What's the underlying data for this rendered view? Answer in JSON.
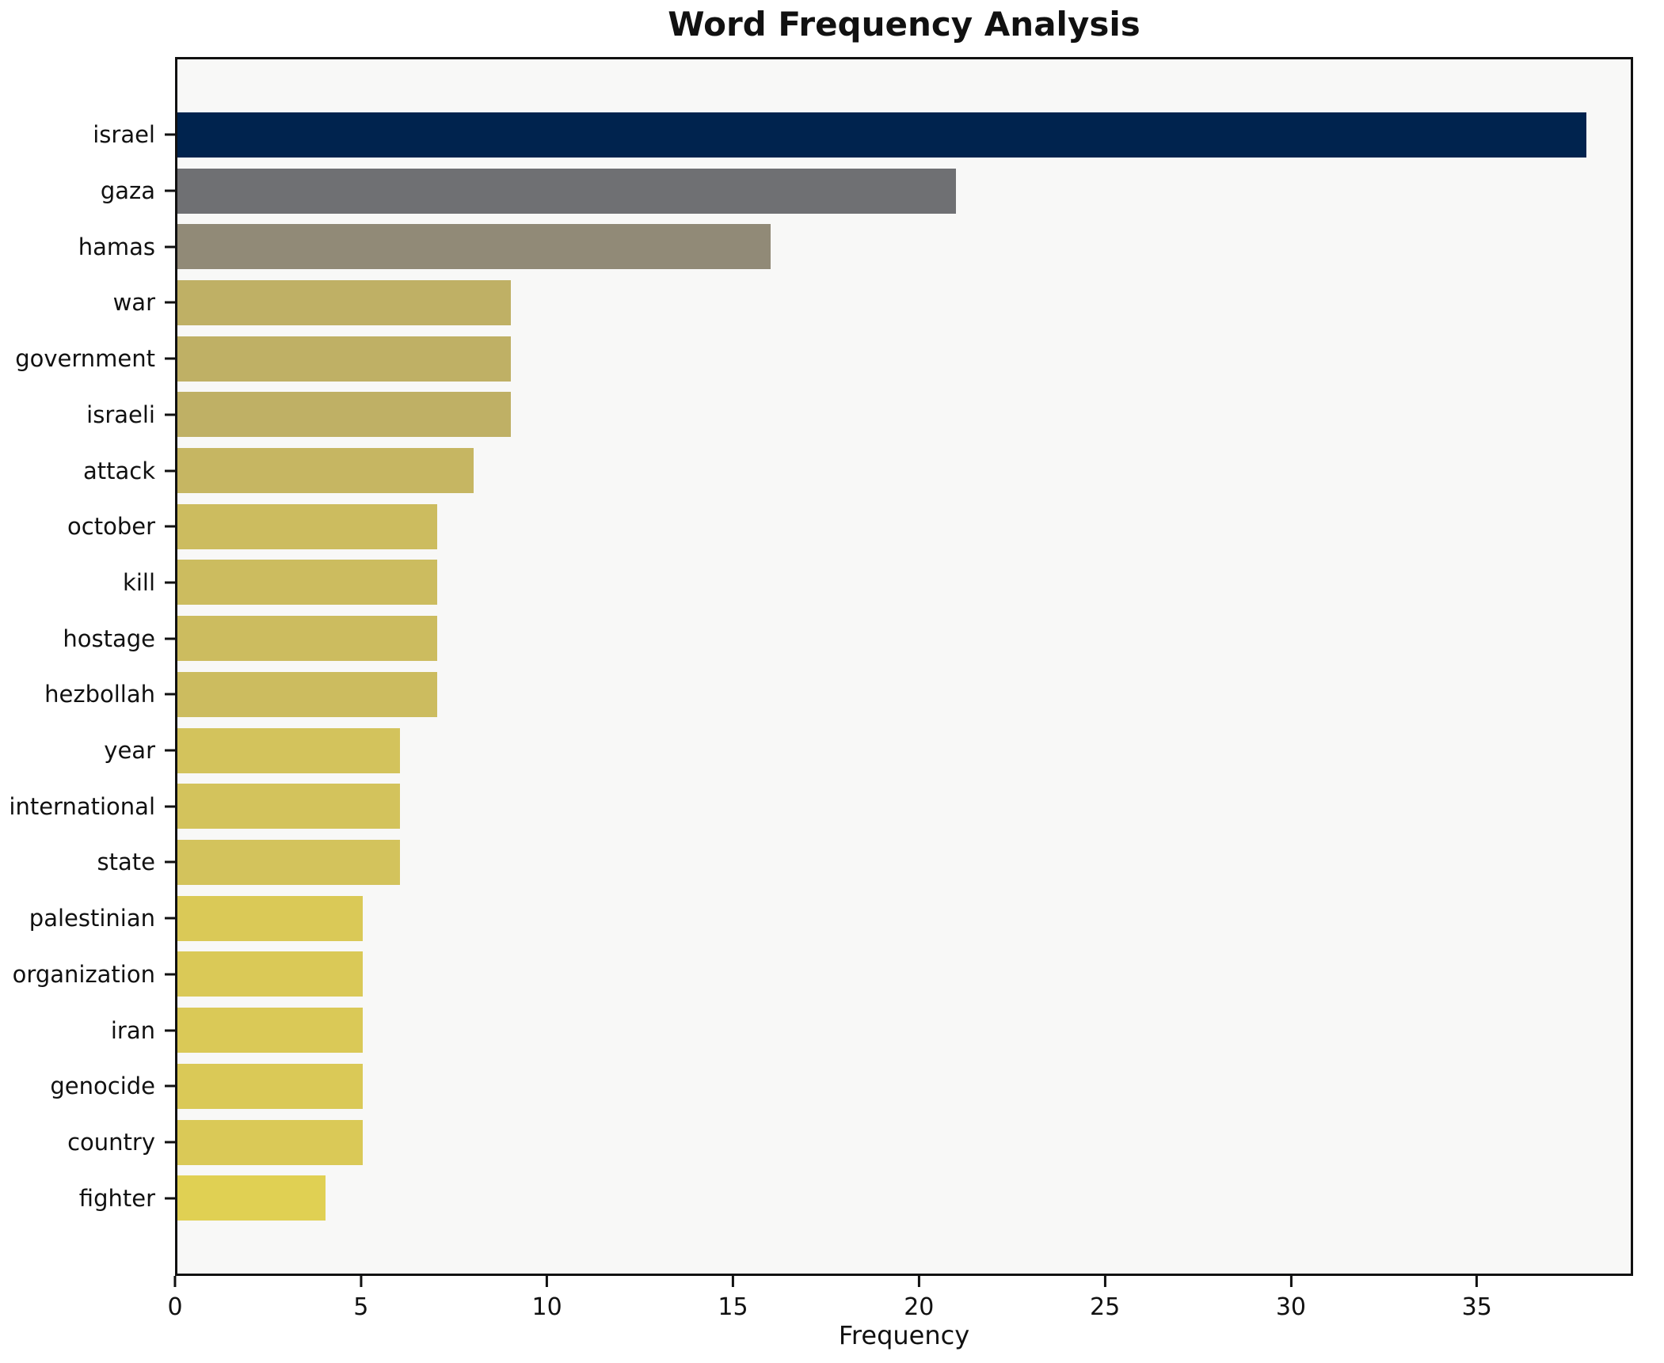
{
  "chart_data": {
    "type": "bar",
    "orientation": "horizontal",
    "title": "Word Frequency Analysis",
    "xlabel": "Frequency",
    "ylabel": "",
    "xlim": [
      0,
      39.2
    ],
    "x_ticks": [
      0,
      5,
      10,
      15,
      20,
      25,
      30,
      35
    ],
    "grid": false,
    "legend": false,
    "categories": [
      "israel",
      "gaza",
      "hamas",
      "war",
      "government",
      "israeli",
      "attack",
      "october",
      "kill",
      "hostage",
      "hezbollah",
      "year",
      "international",
      "state",
      "palestinian",
      "organization",
      "iran",
      "genocide",
      "country",
      "fighter"
    ],
    "values": [
      38,
      21,
      16,
      9,
      9,
      9,
      8,
      7,
      7,
      7,
      7,
      6,
      6,
      6,
      5,
      5,
      5,
      5,
      5,
      4
    ],
    "bar_colors": [
      "#00234e",
      "#6f7073",
      "#918a77",
      "#bfb065",
      "#bfb065",
      "#bfb065",
      "#c6b662",
      "#ccbc5f",
      "#ccbc5f",
      "#ccbc5f",
      "#ccbc5f",
      "#d3c35c",
      "#d3c35c",
      "#d3c35c",
      "#dac957",
      "#dac957",
      "#dac957",
      "#dac957",
      "#dac957",
      "#e0d053"
    ],
    "colors": {
      "plot_background": "#f8f8f7",
      "figure_background": "#ffffff",
      "spine": "#111111",
      "text": "#111111"
    }
  }
}
